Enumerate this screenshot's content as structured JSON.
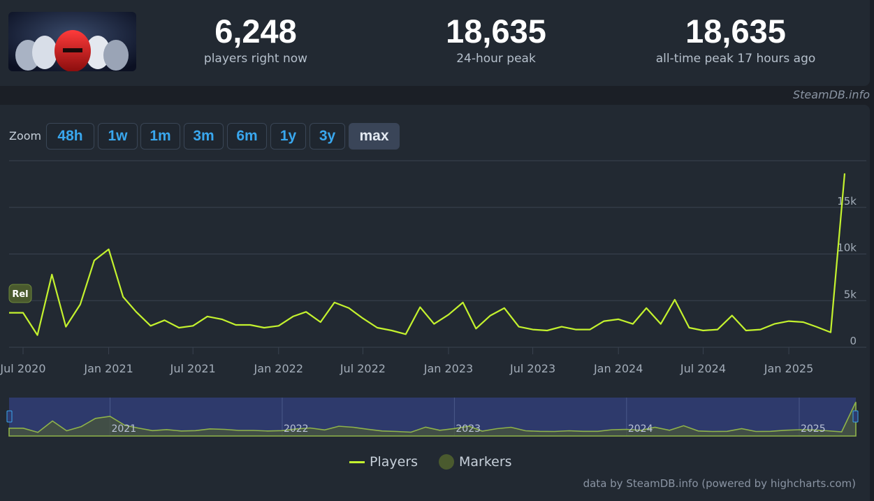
{
  "header": {
    "game_image": "Star Wars Battlefront II Celebration Edition cover",
    "stats": [
      {
        "value": "6,248",
        "label": "players right now"
      },
      {
        "value": "18,635",
        "label": "24-hour peak"
      },
      {
        "value": "18,635",
        "label": "all-time peak 17 hours ago"
      }
    ]
  },
  "credit_top": "SteamDB.info",
  "zoom": {
    "label": "Zoom",
    "options": [
      "48h",
      "1w",
      "1m",
      "3m",
      "6m",
      "1y",
      "3y",
      "max"
    ],
    "active": "max"
  },
  "chart_data": {
    "type": "line",
    "series": [
      {
        "name": "Players",
        "color": "#c4f22e",
        "x": [
          "2020-06",
          "2020-07",
          "2020-08",
          "2020-09",
          "2020-10",
          "2020-11",
          "2020-12",
          "2021-01",
          "2021-02",
          "2021-03",
          "2021-04",
          "2021-05",
          "2021-06",
          "2021-07",
          "2021-08",
          "2021-09",
          "2021-10",
          "2021-11",
          "2021-12",
          "2022-01",
          "2022-02",
          "2022-03",
          "2022-04",
          "2022-05",
          "2022-06",
          "2022-07",
          "2022-08",
          "2022-09",
          "2022-10",
          "2022-11",
          "2022-12",
          "2023-01",
          "2023-02",
          "2023-03",
          "2023-04",
          "2023-05",
          "2023-06",
          "2023-07",
          "2023-08",
          "2023-09",
          "2023-10",
          "2023-11",
          "2023-12",
          "2024-01",
          "2024-02",
          "2024-03",
          "2024-04",
          "2024-05",
          "2024-06",
          "2024-07",
          "2024-08",
          "2024-09",
          "2024-10",
          "2024-11",
          "2024-12",
          "2025-01",
          "2025-02",
          "2025-03",
          "2025-04",
          "2025-05"
        ],
        "y": [
          3700,
          3700,
          1300,
          7800,
          2200,
          4600,
          9300,
          10500,
          5400,
          3800,
          2300,
          2900,
          2100,
          2300,
          3300,
          3000,
          2400,
          2400,
          2100,
          2300,
          3300,
          3800,
          2700,
          4800,
          4200,
          3100,
          2100,
          1800,
          1400,
          4300,
          2500,
          3500,
          4800,
          2000,
          3400,
          4200,
          2200,
          1900,
          1800,
          2200,
          1900,
          1900,
          2800,
          3000,
          2500,
          4200,
          2500,
          5100,
          2100,
          1800,
          1900,
          3400,
          1800,
          1900,
          2500,
          2800,
          2700,
          2200,
          1600,
          18635
        ]
      }
    ],
    "markers": [
      {
        "name": "Rel",
        "x": "2020-06"
      }
    ],
    "legend": [
      "Players",
      "Markers"
    ],
    "ylim": [
      0,
      20000
    ],
    "yticks": [
      {
        "value": 0,
        "label": "0"
      },
      {
        "value": 5000,
        "label": "5k"
      },
      {
        "value": 10000,
        "label": "10k"
      },
      {
        "value": 15000,
        "label": "15k"
      }
    ],
    "xticks": [
      {
        "x": "2020-07",
        "label": "Jul 2020"
      },
      {
        "x": "2021-01",
        "label": "Jan 2021"
      },
      {
        "x": "2021-07",
        "label": "Jul 2021"
      },
      {
        "x": "2022-01",
        "label": "Jan 2022"
      },
      {
        "x": "2022-07",
        "label": "Jul 2022"
      },
      {
        "x": "2023-01",
        "label": "Jan 2023"
      },
      {
        "x": "2023-07",
        "label": "Jul 2023"
      },
      {
        "x": "2024-01",
        "label": "Jan 2024"
      },
      {
        "x": "2024-07",
        "label": "Jul 2024"
      },
      {
        "x": "2025-01",
        "label": "Jan 2025"
      }
    ],
    "navigator_years": [
      {
        "x": "2021-01",
        "label": "2021"
      },
      {
        "x": "2022-01",
        "label": "2022"
      },
      {
        "x": "2023-01",
        "label": "2023"
      },
      {
        "x": "2024-01",
        "label": "2024"
      },
      {
        "x": "2025-01",
        "label": "2025"
      }
    ],
    "grid": true
  },
  "credit_bottom": "data by SteamDB.info (powered by highcharts.com)"
}
